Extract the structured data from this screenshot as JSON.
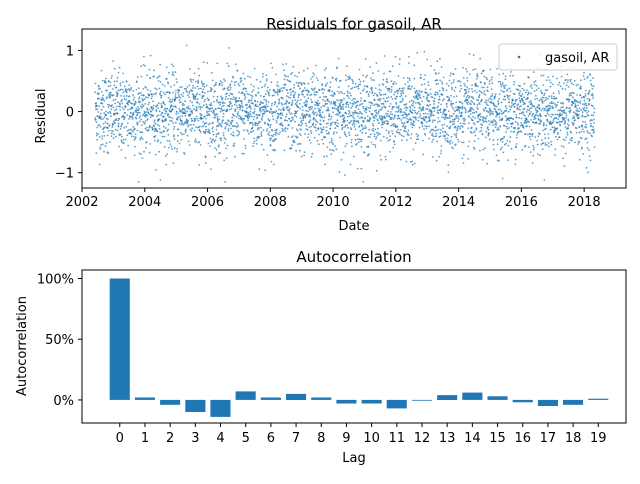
{
  "chart_data": [
    {
      "type": "scatter",
      "title": "Residuals for gasoil, AR",
      "xlabel": "Date",
      "ylabel": "Residual",
      "xlim": [
        "2002-01-01",
        "2019-05-01"
      ],
      "ylim": [
        -1.25,
        1.35
      ],
      "x_ticks": [
        "2002",
        "2004",
        "2006",
        "2008",
        "2010",
        "2012",
        "2014",
        "2016",
        "2018"
      ],
      "y_ticks": [
        "1",
        "0",
        "−1"
      ],
      "y_tick_values": [
        1,
        0,
        -1
      ],
      "legend": {
        "position": "top-right",
        "entries": [
          "gasoil, AR"
        ]
      },
      "series": [
        {
          "name": "gasoil, AR",
          "color": "#1f77b4",
          "x_range": [
            "2002-06-01",
            "2018-05-01"
          ],
          "points_per_year": 252,
          "spread_sd": 0.33,
          "y_extremes": [
            -1.15,
            1.22
          ]
        }
      ],
      "grid": false
    },
    {
      "type": "bar",
      "title": "Autocorrelation",
      "xlabel": "Lag",
      "ylabel": "Autocorrelation",
      "categories": [
        "0",
        "1",
        "2",
        "3",
        "4",
        "5",
        "6",
        "7",
        "8",
        "9",
        "10",
        "11",
        "12",
        "13",
        "14",
        "15",
        "16",
        "17",
        "18",
        "19"
      ],
      "values": [
        1.0,
        0.02,
        -0.04,
        -0.1,
        -0.14,
        0.07,
        0.02,
        0.05,
        0.02,
        -0.03,
        -0.03,
        -0.07,
        0.0,
        0.04,
        0.06,
        0.03,
        -0.02,
        -0.05,
        -0.04,
        0.01
      ],
      "ylim": [
        -0.19,
        1.07
      ],
      "y_ticks": [
        "100%",
        "50%",
        "0%"
      ],
      "y_tick_values": [
        1.0,
        0.5,
        0.0
      ],
      "color": "#1f77b4",
      "grid": false
    }
  ]
}
